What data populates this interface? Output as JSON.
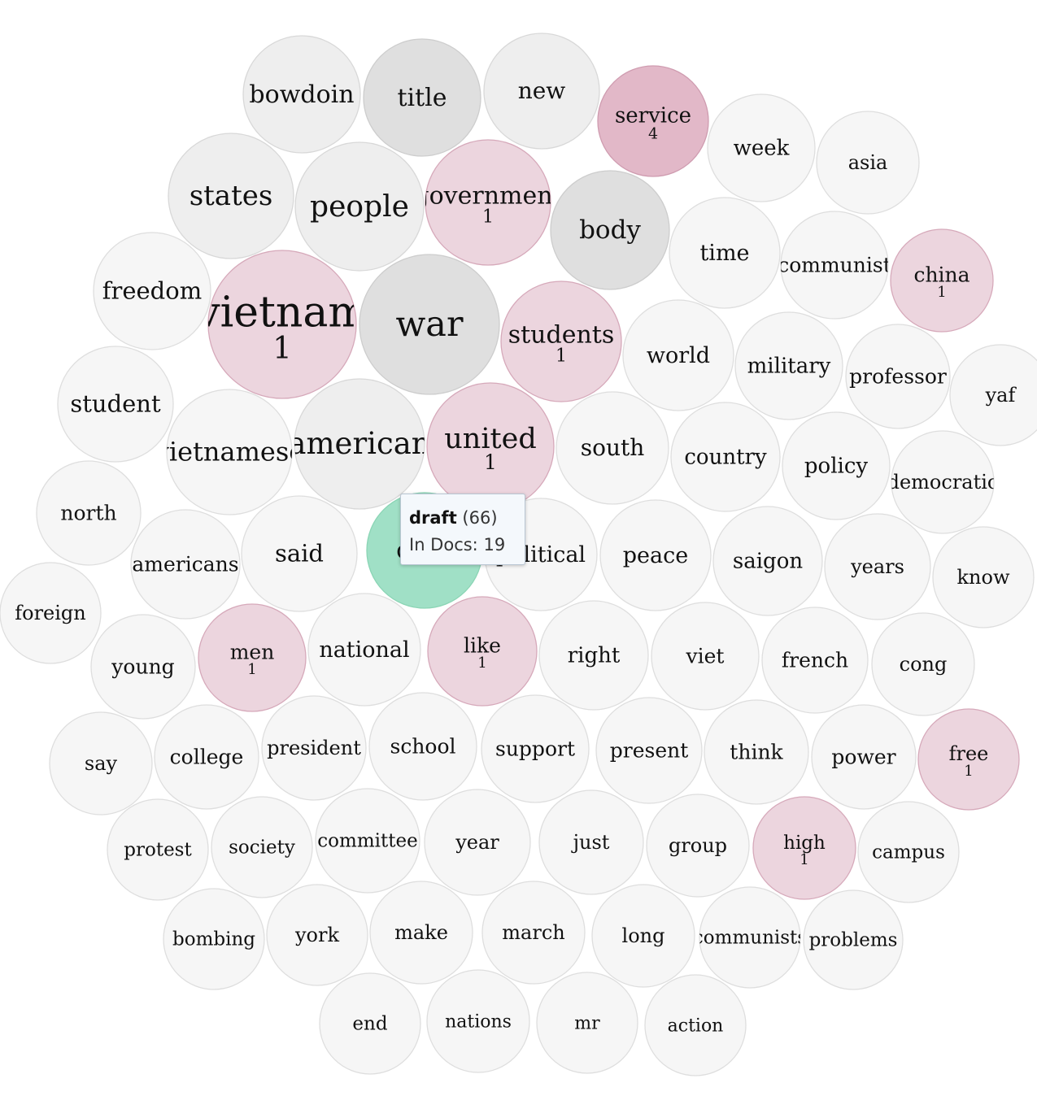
{
  "colors": {
    "gray_light": "#f6f6f6",
    "gray_mid": "#eeeeee",
    "gray_dark": "#dfdfdf",
    "pink": "#ecd5de",
    "pink_dark": "#e2b8c8",
    "green": "#a0e0c6"
  },
  "words": [
    {
      "word": "bowdoin",
      "tone": "gray_mid",
      "count": null
    },
    {
      "word": "title",
      "tone": "gray_dark",
      "count": null
    },
    {
      "word": "new",
      "tone": "gray_mid",
      "count": null
    },
    {
      "word": "service",
      "tone": "pink_dark",
      "count": "4"
    },
    {
      "word": "week",
      "tone": "gray_light",
      "count": null
    },
    {
      "word": "asia",
      "tone": "gray_light",
      "count": null
    },
    {
      "word": "states",
      "tone": "gray_mid",
      "count": null
    },
    {
      "word": "people",
      "tone": "gray_mid",
      "count": null
    },
    {
      "word": "government",
      "tone": "pink",
      "count": "1"
    },
    {
      "word": "body",
      "tone": "gray_dark",
      "count": null
    },
    {
      "word": "time",
      "tone": "gray_light",
      "count": null
    },
    {
      "word": "communist",
      "tone": "gray_light",
      "count": null
    },
    {
      "word": "china",
      "tone": "pink",
      "count": "1"
    },
    {
      "word": "freedom",
      "tone": "gray_light",
      "count": null
    },
    {
      "word": "vietnam",
      "tone": "pink",
      "count": "1"
    },
    {
      "word": "war",
      "tone": "gray_dark",
      "count": null
    },
    {
      "word": "students",
      "tone": "pink",
      "count": "1"
    },
    {
      "word": "world",
      "tone": "gray_light",
      "count": null
    },
    {
      "word": "military",
      "tone": "gray_light",
      "count": null
    },
    {
      "word": "professor",
      "tone": "gray_light",
      "count": null
    },
    {
      "word": "yaf",
      "tone": "gray_light",
      "count": null
    },
    {
      "word": "student",
      "tone": "gray_light",
      "count": null
    },
    {
      "word": "vietnamese",
      "tone": "gray_light",
      "count": null
    },
    {
      "word": "american",
      "tone": "gray_mid",
      "count": null
    },
    {
      "word": "united",
      "tone": "pink",
      "count": "1"
    },
    {
      "word": "south",
      "tone": "gray_light",
      "count": null
    },
    {
      "word": "country",
      "tone": "gray_light",
      "count": null
    },
    {
      "word": "policy",
      "tone": "gray_light",
      "count": null
    },
    {
      "word": "democratic",
      "tone": "gray_light",
      "count": null
    },
    {
      "word": "north",
      "tone": "gray_light",
      "count": null
    },
    {
      "word": "americans",
      "tone": "gray_light",
      "count": null
    },
    {
      "word": "said",
      "tone": "gray_light",
      "count": null
    },
    {
      "word": "draft",
      "tone": "green",
      "count": null
    },
    {
      "word": "political",
      "tone": "gray_light",
      "count": null
    },
    {
      "word": "peace",
      "tone": "gray_light",
      "count": null
    },
    {
      "word": "saigon",
      "tone": "gray_light",
      "count": null
    },
    {
      "word": "years",
      "tone": "gray_light",
      "count": null
    },
    {
      "word": "know",
      "tone": "gray_light",
      "count": null
    },
    {
      "word": "foreign",
      "tone": "gray_light",
      "count": null
    },
    {
      "word": "young",
      "tone": "gray_light",
      "count": null
    },
    {
      "word": "men",
      "tone": "pink",
      "count": "1"
    },
    {
      "word": "national",
      "tone": "gray_light",
      "count": null
    },
    {
      "word": "like",
      "tone": "pink",
      "count": "1"
    },
    {
      "word": "right",
      "tone": "gray_light",
      "count": null
    },
    {
      "word": "viet",
      "tone": "gray_light",
      "count": null
    },
    {
      "word": "french",
      "tone": "gray_light",
      "count": null
    },
    {
      "word": "cong",
      "tone": "gray_light",
      "count": null
    },
    {
      "word": "say",
      "tone": "gray_light",
      "count": null
    },
    {
      "word": "college",
      "tone": "gray_light",
      "count": null
    },
    {
      "word": "president",
      "tone": "gray_light",
      "count": null
    },
    {
      "word": "school",
      "tone": "gray_light",
      "count": null
    },
    {
      "word": "support",
      "tone": "gray_light",
      "count": null
    },
    {
      "word": "present",
      "tone": "gray_light",
      "count": null
    },
    {
      "word": "think",
      "tone": "gray_light",
      "count": null
    },
    {
      "word": "power",
      "tone": "gray_light",
      "count": null
    },
    {
      "word": "free",
      "tone": "pink",
      "count": "1"
    },
    {
      "word": "protest",
      "tone": "gray_light",
      "count": null
    },
    {
      "word": "society",
      "tone": "gray_light",
      "count": null
    },
    {
      "word": "committee",
      "tone": "gray_light",
      "count": null
    },
    {
      "word": "year",
      "tone": "gray_light",
      "count": null
    },
    {
      "word": "just",
      "tone": "gray_light",
      "count": null
    },
    {
      "word": "group",
      "tone": "gray_light",
      "count": null
    },
    {
      "word": "high",
      "tone": "pink",
      "count": "1"
    },
    {
      "word": "campus",
      "tone": "gray_light",
      "count": null
    },
    {
      "word": "bombing",
      "tone": "gray_light",
      "count": null
    },
    {
      "word": "york",
      "tone": "gray_light",
      "count": null
    },
    {
      "word": "make",
      "tone": "gray_light",
      "count": null
    },
    {
      "word": "march",
      "tone": "gray_light",
      "count": null
    },
    {
      "word": "long",
      "tone": "gray_light",
      "count": null
    },
    {
      "word": "communists",
      "tone": "gray_light",
      "count": null
    },
    {
      "word": "problems",
      "tone": "gray_light",
      "count": null
    },
    {
      "word": "end",
      "tone": "gray_light",
      "count": null
    },
    {
      "word": "nations",
      "tone": "gray_light",
      "count": null
    },
    {
      "word": "mr",
      "tone": "gray_light",
      "count": null
    },
    {
      "word": "action",
      "tone": "gray_light",
      "count": null
    }
  ],
  "tooltip": {
    "word": "draft",
    "count": "(66)",
    "docs_label": "In Docs:",
    "docs_value": "19"
  }
}
